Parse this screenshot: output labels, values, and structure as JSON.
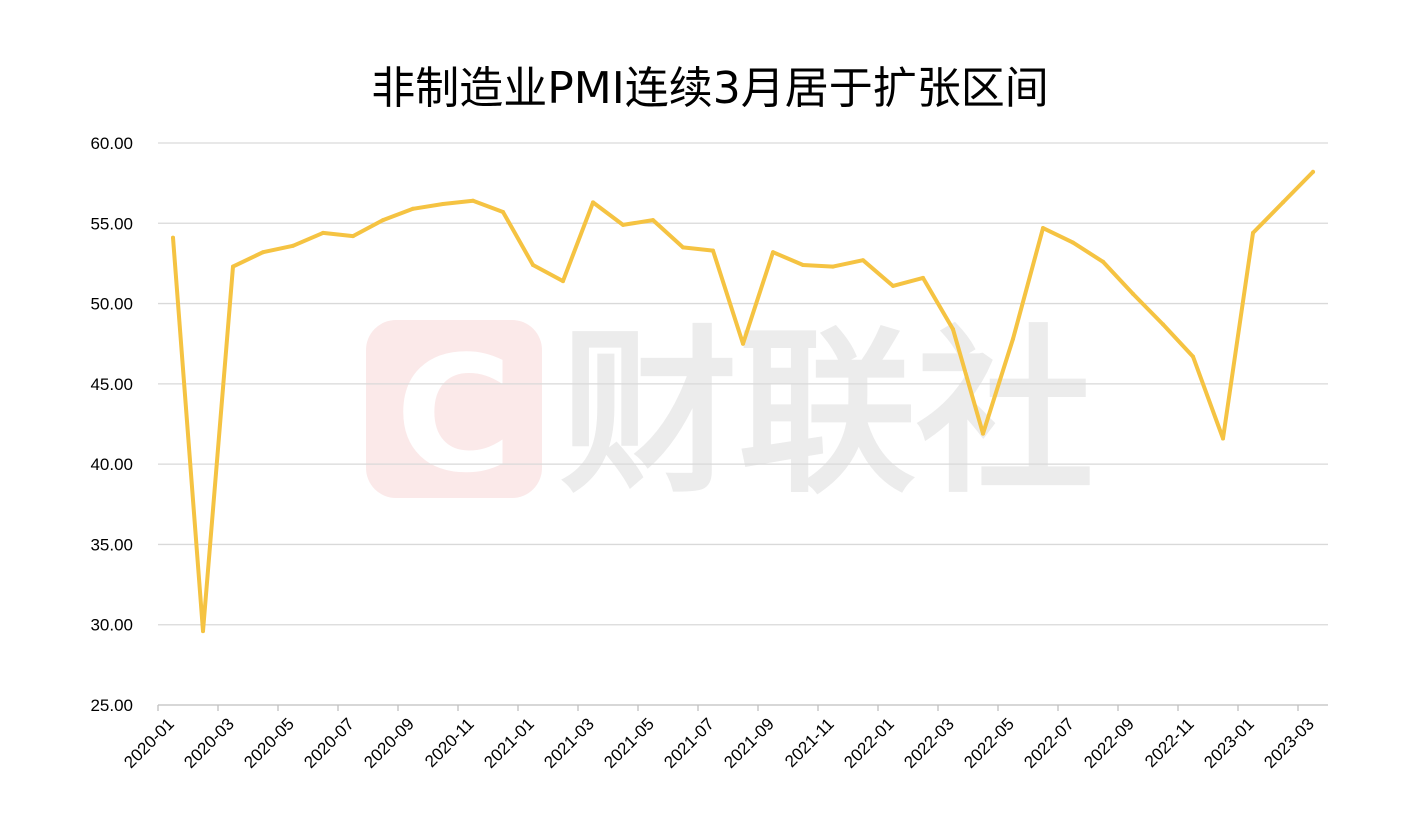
{
  "chart_data": {
    "type": "line",
    "title": "非制造业PMI连续3月居于扩张区间",
    "xlabel": "",
    "ylabel": "",
    "ylim": [
      25,
      60
    ],
    "yticks": [
      "25.00",
      "30.00",
      "35.00",
      "40.00",
      "45.00",
      "50.00",
      "55.00",
      "60.00"
    ],
    "xtick_labels": [
      "2020-01",
      "2020-03",
      "2020-05",
      "2020-07",
      "2020-09",
      "2020-11",
      "2021-01",
      "2021-03",
      "2021-05",
      "2021-07",
      "2021-09",
      "2021-11",
      "2022-01",
      "2022-03",
      "2022-05",
      "2022-07",
      "2022-09",
      "2022-11",
      "2023-01",
      "2023-03"
    ],
    "x": [
      "2020-01",
      "2020-02",
      "2020-03",
      "2020-04",
      "2020-05",
      "2020-06",
      "2020-07",
      "2020-08",
      "2020-09",
      "2020-10",
      "2020-11",
      "2020-12",
      "2021-01",
      "2021-02",
      "2021-03",
      "2021-04",
      "2021-05",
      "2021-06",
      "2021-07",
      "2021-08",
      "2021-09",
      "2021-10",
      "2021-11",
      "2021-12",
      "2022-01",
      "2022-02",
      "2022-03",
      "2022-04",
      "2022-05",
      "2022-06",
      "2022-07",
      "2022-08",
      "2022-09",
      "2022-10",
      "2022-11",
      "2022-12",
      "2023-01",
      "2023-02",
      "2023-03"
    ],
    "series": [
      {
        "values": [
          54.1,
          29.6,
          52.3,
          53.2,
          53.6,
          54.4,
          54.2,
          55.2,
          55.9,
          56.2,
          56.4,
          55.7,
          52.4,
          51.4,
          56.3,
          54.9,
          55.2,
          53.5,
          53.3,
          47.5,
          53.2,
          52.4,
          52.3,
          52.7,
          51.1,
          51.6,
          48.4,
          41.9,
          47.8,
          54.7,
          53.8,
          52.6,
          50.6,
          48.7,
          46.7,
          41.6,
          54.4,
          56.3,
          58.2
        ]
      }
    ],
    "grid": true,
    "legend": "none",
    "colors": {
      "line": "#f5c342",
      "grid": "#d9d9d9",
      "watermark": "#ececec",
      "watermark_logo": "#fbe9e9"
    }
  },
  "watermark": {
    "logo_letter": "C",
    "text": "财联社"
  }
}
